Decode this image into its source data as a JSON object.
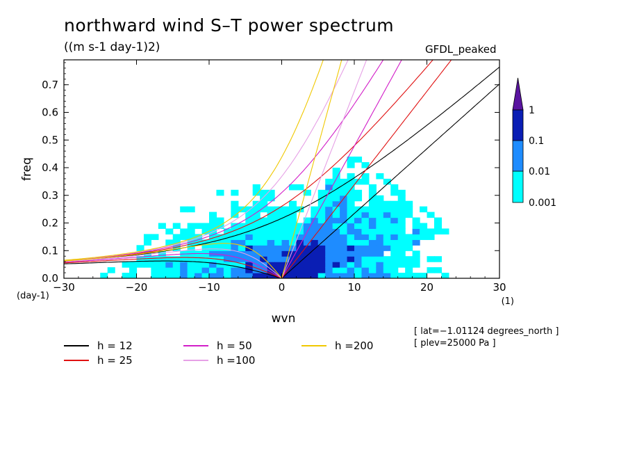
{
  "title": "northward wind S–T power spectrum",
  "subtitle": "((m s-1 day-1)2)",
  "model_label": "GFDL_peaked",
  "meta": [
    "[ lat=−1.01124 degrees_north ]",
    "[ plev=25000 Pa ]"
  ],
  "chart_data": {
    "type": "heatmap",
    "title": "northward wind S–T power spectrum",
    "xlabel": "wvn",
    "ylabel": "freq",
    "x_unit": "(1)",
    "y_unit": "(day-1)",
    "xlim": [
      -30,
      30
    ],
    "ylim": [
      0,
      0.79
    ],
    "x_ticks": [
      -30,
      -20,
      -10,
      0,
      10,
      20,
      30
    ],
    "x_tick_labels": [
      "−30",
      "−20",
      "−10",
      "0",
      "10",
      "20",
      "30"
    ],
    "y_ticks": [
      0,
      0.1,
      0.2,
      0.3,
      0.4,
      0.5,
      0.6,
      0.7
    ],
    "y_tick_labels": [
      "0.0",
      "0.1",
      "0.2",
      "0.3",
      "0.4",
      "0.5",
      "0.6",
      "0.7"
    ],
    "colorbar": {
      "levels": [
        0.001,
        0.01,
        0.1,
        1
      ],
      "labels": [
        "0.001",
        "0.01",
        "0.1",
        "1"
      ],
      "colors": [
        "#00ffff",
        "#1e8cff",
        "#0a1eb4",
        "#5a14a0"
      ],
      "extend": "max"
    },
    "dispersion_curves": [
      {
        "name": "h = 12",
        "h": 12,
        "color": "#000000"
      },
      {
        "name": "h = 25",
        "h": 25,
        "color": "#e01010"
      },
      {
        "name": "h = 50",
        "h": 50,
        "color": "#d21ec8"
      },
      {
        "name": "h =100",
        "h": 100,
        "color": "#e6a0e6"
      },
      {
        "name": "h =200",
        "h": 200,
        "color": "#f0c800"
      }
    ],
    "mrg_minimum_freq": [
      {
        "h": 12,
        "freq": 0.37
      },
      {
        "h": 25,
        "freq": 0.445
      },
      {
        "h": 50,
        "freq": 0.53
      },
      {
        "h": 100,
        "freq": 0.63
      },
      {
        "h": 200,
        "freq": 0.745
      }
    ],
    "power_regions": [
      {
        "level": 0.001,
        "wvn_range": [
          -30,
          30
        ],
        "freq_max": 0.34
      },
      {
        "level": 0.01,
        "wvn_range": [
          -8,
          12
        ],
        "freq_max": 0.2
      },
      {
        "level": 0.1,
        "wvn_range": [
          -4,
          8
        ],
        "freq_max": 0.12
      }
    ]
  }
}
